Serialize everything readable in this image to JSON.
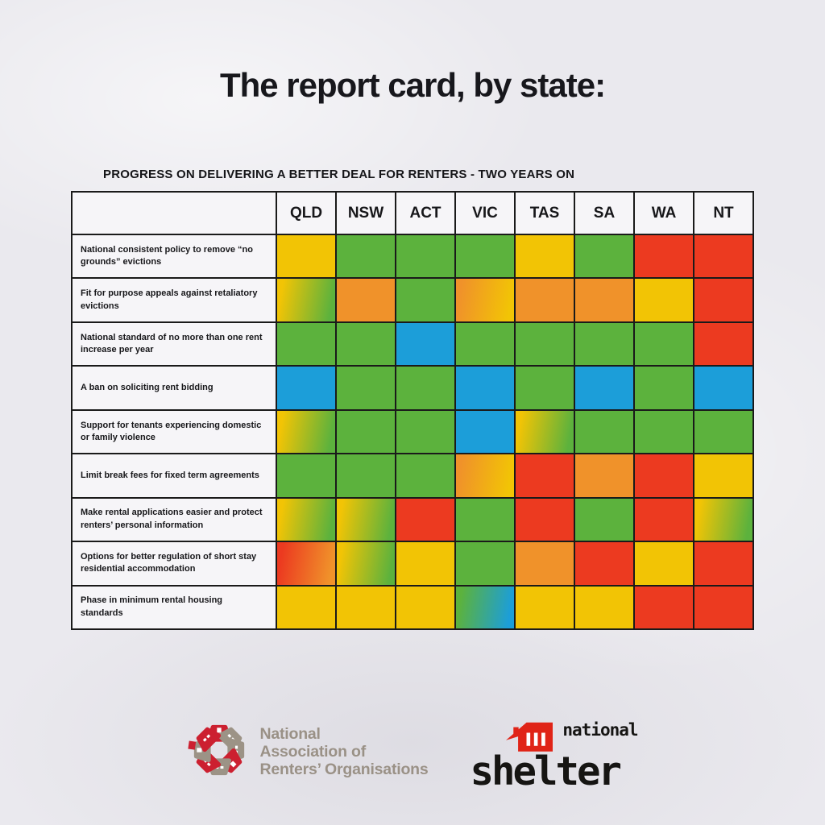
{
  "page": {
    "title": "The report card, by state:"
  },
  "chart_data": {
    "type": "heatmap",
    "title": "PROGRESS ON DELIVERING A BETTER DEAL FOR RENTERS - TWO YEARS ON",
    "columns": [
      "QLD",
      "NSW",
      "ACT",
      "VIC",
      "TAS",
      "SA",
      "WA",
      "NT"
    ],
    "rows": [
      {
        "label": "National consistent policy to remove “no grounds” evictions",
        "cells": [
          "yellow",
          "green",
          "green",
          "green",
          "yellow",
          "green",
          "red",
          "red"
        ]
      },
      {
        "label": "Fit for purpose appeals against retaliatory evictions",
        "cells": [
          "yellow-green",
          "orange",
          "green",
          "orange-yellow",
          "orange",
          "orange",
          "yellow",
          "red"
        ]
      },
      {
        "label": "National standard of no more than one rent increase per year",
        "cells": [
          "green",
          "green",
          "blue",
          "green",
          "green",
          "green",
          "green",
          "red"
        ]
      },
      {
        "label": "A ban on soliciting rent bidding",
        "cells": [
          "blue",
          "green",
          "green",
          "blue",
          "green",
          "blue",
          "green",
          "blue"
        ]
      },
      {
        "label": "Support for tenants experiencing domestic or family violence",
        "cells": [
          "yellow-green",
          "green",
          "green",
          "blue",
          "yellow-green",
          "green",
          "green",
          "green"
        ]
      },
      {
        "label": "Limit break fees for fixed term agreements",
        "cells": [
          "green",
          "green",
          "green",
          "orange-yellow",
          "red",
          "orange",
          "red",
          "yellow"
        ]
      },
      {
        "label": "Make rental applications easier and protect renters’ personal information",
        "cells": [
          "yellow-green",
          "yellow-green",
          "red",
          "green",
          "red",
          "green",
          "red",
          "yellow-green"
        ]
      },
      {
        "label": "Options for better regulation of short stay residential accommodation",
        "cells": [
          "red-orange",
          "yellow-green",
          "yellow",
          "green",
          "orange",
          "red",
          "yellow",
          "red"
        ]
      },
      {
        "label": "Phase in minimum rental housing standards",
        "cells": [
          "yellow",
          "yellow",
          "yellow",
          "green-blue",
          "yellow",
          "yellow",
          "red",
          "red"
        ]
      }
    ],
    "palette": {
      "green": "#5cb23d",
      "yellow": "#f2c405",
      "orange": "#f0922a",
      "red": "#ec3a20",
      "blue": "#1c9ed9"
    },
    "grid": true,
    "legend_position": "none"
  },
  "footer": {
    "naro_logo": {
      "icon": "rosette-houses-icon",
      "lines": [
        "National",
        "Association of",
        "Renters’ Organisations"
      ],
      "red": "#cc2030",
      "taupe": "#9c9386"
    },
    "shelter_logo": {
      "icon": "house-icon",
      "top_label": "national",
      "name": "shelter",
      "red": "#e02417",
      "black": "#161513"
    }
  }
}
